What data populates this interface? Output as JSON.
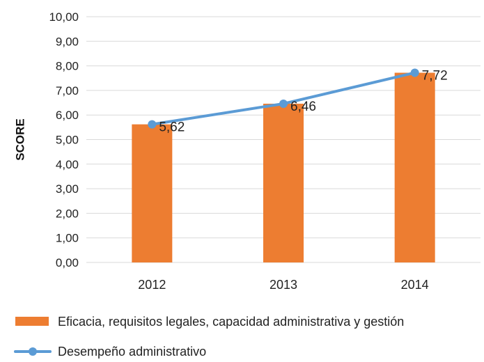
{
  "chart_data": {
    "type": "bar",
    "categories": [
      "2012",
      "2013",
      "2014"
    ],
    "ylabel": "SCORE",
    "ylim": [
      0,
      10
    ],
    "yticks": [
      "0,00",
      "1,00",
      "2,00",
      "3,00",
      "4,00",
      "5,00",
      "6,00",
      "7,00",
      "8,00",
      "9,00",
      "10,00"
    ],
    "grid": true,
    "legend_position": "bottom",
    "series": [
      {
        "name": "Eficacia, requisitos legales, capacidad administrativa y gestión",
        "kind": "bar",
        "color": "#ED7D31",
        "values": [
          5.62,
          6.46,
          7.72
        ]
      },
      {
        "name": "Desempeño administrativo",
        "kind": "line",
        "color": "#5B9BD5",
        "values": [
          5.62,
          6.46,
          7.72
        ],
        "labels": [
          "5,62",
          "6,46",
          "7,72"
        ]
      }
    ]
  }
}
